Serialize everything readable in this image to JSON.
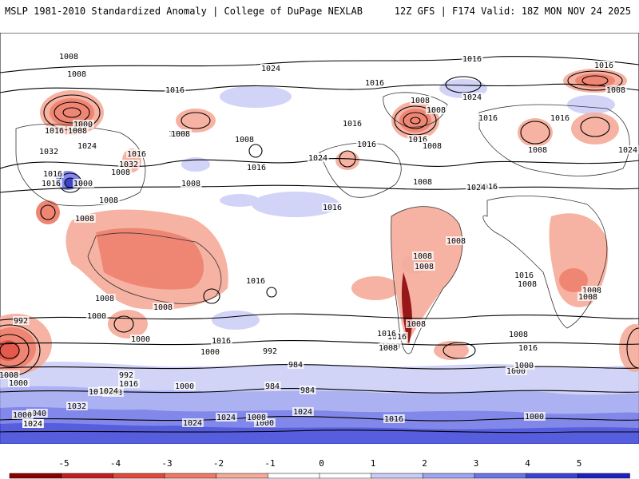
{
  "header": {
    "left": "MSLP 1981-2010 Standardized Anomaly | College of DuPage NEXLAB",
    "right": "12Z GFS | F174 Valid: 18Z MON NOV 24 2025"
  },
  "colorbar": {
    "ticks": [
      "-5",
      "-4",
      "-3",
      "-2",
      "-1",
      "0",
      "1",
      "2",
      "3",
      "4",
      "5"
    ],
    "colors": [
      "#8b0000",
      "#c41e1e",
      "#e04a3a",
      "#ee7a66",
      "#f6aa98",
      "#ffffff",
      "#ffffff",
      "#c9ccf6",
      "#9ea4f0",
      "#6d74e6",
      "#3a42d8",
      "#1b22c0"
    ]
  },
  "isobar_labels": [
    "1008",
    "1008",
    "1016",
    "1024",
    "1016",
    "1008",
    "1016",
    "1016",
    "1008",
    "1000",
    "1016",
    "1008",
    "1024",
    "1032",
    "1024",
    "1016",
    "1032",
    "1000",
    "1008",
    "1016",
    "1016",
    "1024",
    "1016",
    "1016",
    "1008",
    "1016",
    "1008",
    "1024",
    "1008",
    "1000",
    "1008",
    "1016",
    "1016",
    "1016",
    "1008",
    "1008",
    "1008",
    "1016",
    "1008",
    "1016",
    "1024",
    "1008",
    "1008",
    "1000",
    "1016",
    "1016",
    "1000",
    "1008",
    "1008",
    "1008",
    "1000",
    "1016",
    "1008",
    "1000",
    "1000",
    "984",
    "992",
    "984",
    "992",
    "1000",
    "992",
    "1008",
    "1000",
    "984",
    "1000",
    "1008",
    "1016",
    "1040",
    "1032",
    "1024",
    "1016",
    "1024",
    "1024",
    "1000",
    "1008",
    "1016",
    "1008",
    "1024",
    "1008",
    "1016",
    "1016",
    "1008",
    "1000",
    "1016",
    "1000",
    "1008",
    "1024",
    "1024",
    "1008",
    "1008"
  ]
}
